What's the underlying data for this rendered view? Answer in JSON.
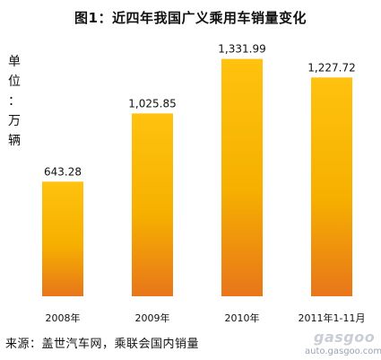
{
  "chart_data": {
    "type": "bar",
    "title": "图1：近四年我国广义乘用车销量变化",
    "ylabel": "单\n位\n：\n万\n辆",
    "categories": [
      "2008年",
      "2009年",
      "2010年",
      "2011年1-11月"
    ],
    "values": [
      643.28,
      1025.85,
      1331.99,
      1227.72
    ],
    "value_labels": [
      "643.28",
      "1,025.85",
      "1,331.99",
      "1,227.72"
    ],
    "ylim": [
      0,
      1500
    ],
    "grid": false,
    "legend": "none",
    "colors": {
      "bar_top": "#ffc20e",
      "bar_mid": "#f6b000",
      "bar_bottom": "#e8761a"
    }
  },
  "source": "来源：盖世汽车网，乘联会国内销量",
  "watermark": {
    "brand": "gasgoo",
    "url": "auto.gasgoo.com"
  }
}
